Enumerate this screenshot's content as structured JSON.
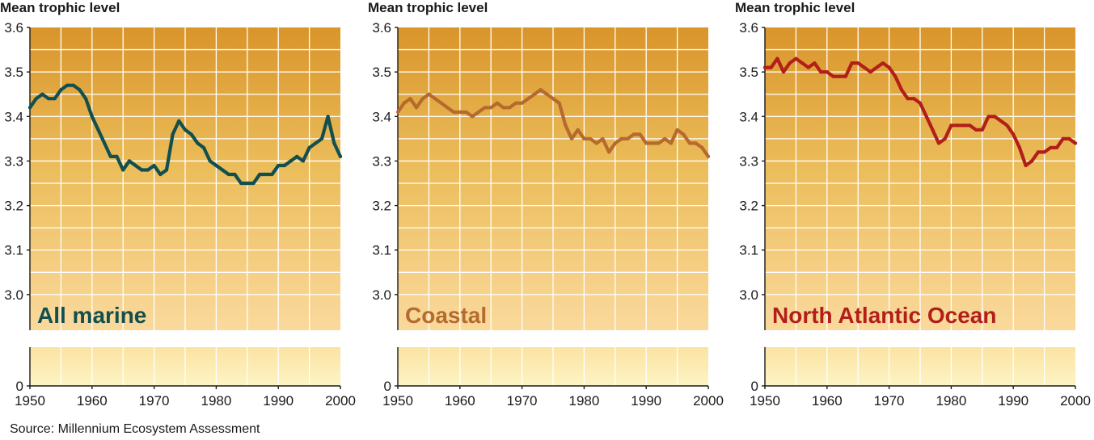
{
  "source": "Source: Millennium Ecosystem Assessment",
  "colors": {
    "grad_top": "#d9952a",
    "grad_mid": "#ebbc59",
    "grad_bottom": "#fad99c",
    "lower_top": "#fbe3a2",
    "lower_bottom": "#fdf4c4",
    "grid": "#ffffff",
    "axis": "#1a1a1a"
  },
  "chart_data": [
    {
      "type": "line",
      "title": "Mean trophic level",
      "label": "All marine",
      "color": "#124f4f",
      "xlim": [
        1950,
        2000
      ],
      "ylim": [
        2.92,
        3.6
      ],
      "xticks": [
        "1950",
        "1960",
        "1970",
        "1980",
        "1990",
        "2000"
      ],
      "yticks": [
        "3.0",
        "3.1",
        "3.2",
        "3.3",
        "3.4",
        "3.5",
        "3.6"
      ],
      "lower_ticks": [
        "0"
      ],
      "x": [
        1950,
        1951,
        1952,
        1953,
        1954,
        1955,
        1956,
        1957,
        1958,
        1959,
        1960,
        1961,
        1962,
        1963,
        1964,
        1965,
        1966,
        1967,
        1968,
        1969,
        1970,
        1971,
        1972,
        1973,
        1974,
        1975,
        1976,
        1977,
        1978,
        1979,
        1980,
        1981,
        1982,
        1983,
        1984,
        1985,
        1986,
        1987,
        1988,
        1989,
        1990,
        1991,
        1992,
        1993,
        1994,
        1995,
        1996,
        1997,
        1998,
        1999,
        2000
      ],
      "values": [
        3.42,
        3.44,
        3.45,
        3.44,
        3.44,
        3.46,
        3.47,
        3.47,
        3.46,
        3.44,
        3.4,
        3.37,
        3.34,
        3.31,
        3.31,
        3.28,
        3.3,
        3.29,
        3.28,
        3.28,
        3.29,
        3.27,
        3.28,
        3.36,
        3.39,
        3.37,
        3.36,
        3.34,
        3.33,
        3.3,
        3.29,
        3.28,
        3.27,
        3.27,
        3.25,
        3.25,
        3.25,
        3.27,
        3.27,
        3.27,
        3.29,
        3.29,
        3.3,
        3.31,
        3.3,
        3.33,
        3.34,
        3.35,
        3.4,
        3.34,
        3.31
      ]
    },
    {
      "type": "line",
      "title": "Mean trophic level",
      "label": "Coastal",
      "color": "#b56a2e",
      "xlim": [
        1950,
        2000
      ],
      "ylim": [
        2.92,
        3.6
      ],
      "xticks": [
        "1950",
        "1960",
        "1970",
        "1980",
        "1990",
        "2000"
      ],
      "yticks": [
        "3.0",
        "3.1",
        "3.2",
        "3.3",
        "3.4",
        "3.5",
        "3.6"
      ],
      "lower_ticks": [
        "0"
      ],
      "x": [
        1950,
        1951,
        1952,
        1953,
        1954,
        1955,
        1956,
        1957,
        1958,
        1959,
        1960,
        1961,
        1962,
        1963,
        1964,
        1965,
        1966,
        1967,
        1968,
        1969,
        1970,
        1971,
        1972,
        1973,
        1974,
        1975,
        1976,
        1977,
        1978,
        1979,
        1980,
        1981,
        1982,
        1983,
        1984,
        1985,
        1986,
        1987,
        1988,
        1989,
        1990,
        1991,
        1992,
        1993,
        1994,
        1995,
        1996,
        1997,
        1998,
        1999,
        2000
      ],
      "values": [
        3.41,
        3.43,
        3.44,
        3.42,
        3.44,
        3.45,
        3.44,
        3.43,
        3.42,
        3.41,
        3.41,
        3.41,
        3.4,
        3.41,
        3.42,
        3.42,
        3.43,
        3.42,
        3.42,
        3.43,
        3.43,
        3.44,
        3.45,
        3.46,
        3.45,
        3.44,
        3.43,
        3.38,
        3.35,
        3.37,
        3.35,
        3.35,
        3.34,
        3.35,
        3.32,
        3.34,
        3.35,
        3.35,
        3.36,
        3.36,
        3.34,
        3.34,
        3.34,
        3.35,
        3.34,
        3.37,
        3.36,
        3.34,
        3.34,
        3.33,
        3.31
      ]
    },
    {
      "type": "line",
      "title": "Mean trophic level",
      "label": "North Atlantic Ocean",
      "color": "#b21f1a",
      "xlim": [
        1950,
        2000
      ],
      "ylim": [
        2.92,
        3.6
      ],
      "xticks": [
        "1950",
        "1960",
        "1970",
        "1980",
        "1990",
        "2000"
      ],
      "yticks": [
        "3.0",
        "3.1",
        "3.2",
        "3.3",
        "3.4",
        "3.5",
        "3.6"
      ],
      "lower_ticks": [
        "0"
      ],
      "x": [
        1950,
        1951,
        1952,
        1953,
        1954,
        1955,
        1956,
        1957,
        1958,
        1959,
        1960,
        1961,
        1962,
        1963,
        1964,
        1965,
        1966,
        1967,
        1968,
        1969,
        1970,
        1971,
        1972,
        1973,
        1974,
        1975,
        1976,
        1977,
        1978,
        1979,
        1980,
        1981,
        1982,
        1983,
        1984,
        1985,
        1986,
        1987,
        1988,
        1989,
        1990,
        1991,
        1992,
        1993,
        1994,
        1995,
        1996,
        1997,
        1998,
        1999,
        2000
      ],
      "values": [
        3.51,
        3.51,
        3.53,
        3.5,
        3.52,
        3.53,
        3.52,
        3.51,
        3.52,
        3.5,
        3.5,
        3.49,
        3.49,
        3.49,
        3.52,
        3.52,
        3.51,
        3.5,
        3.51,
        3.52,
        3.51,
        3.49,
        3.46,
        3.44,
        3.44,
        3.43,
        3.4,
        3.37,
        3.34,
        3.35,
        3.38,
        3.38,
        3.38,
        3.38,
        3.37,
        3.37,
        3.4,
        3.4,
        3.39,
        3.38,
        3.36,
        3.33,
        3.29,
        3.3,
        3.32,
        3.32,
        3.33,
        3.33,
        3.35,
        3.35,
        3.34
      ]
    }
  ]
}
